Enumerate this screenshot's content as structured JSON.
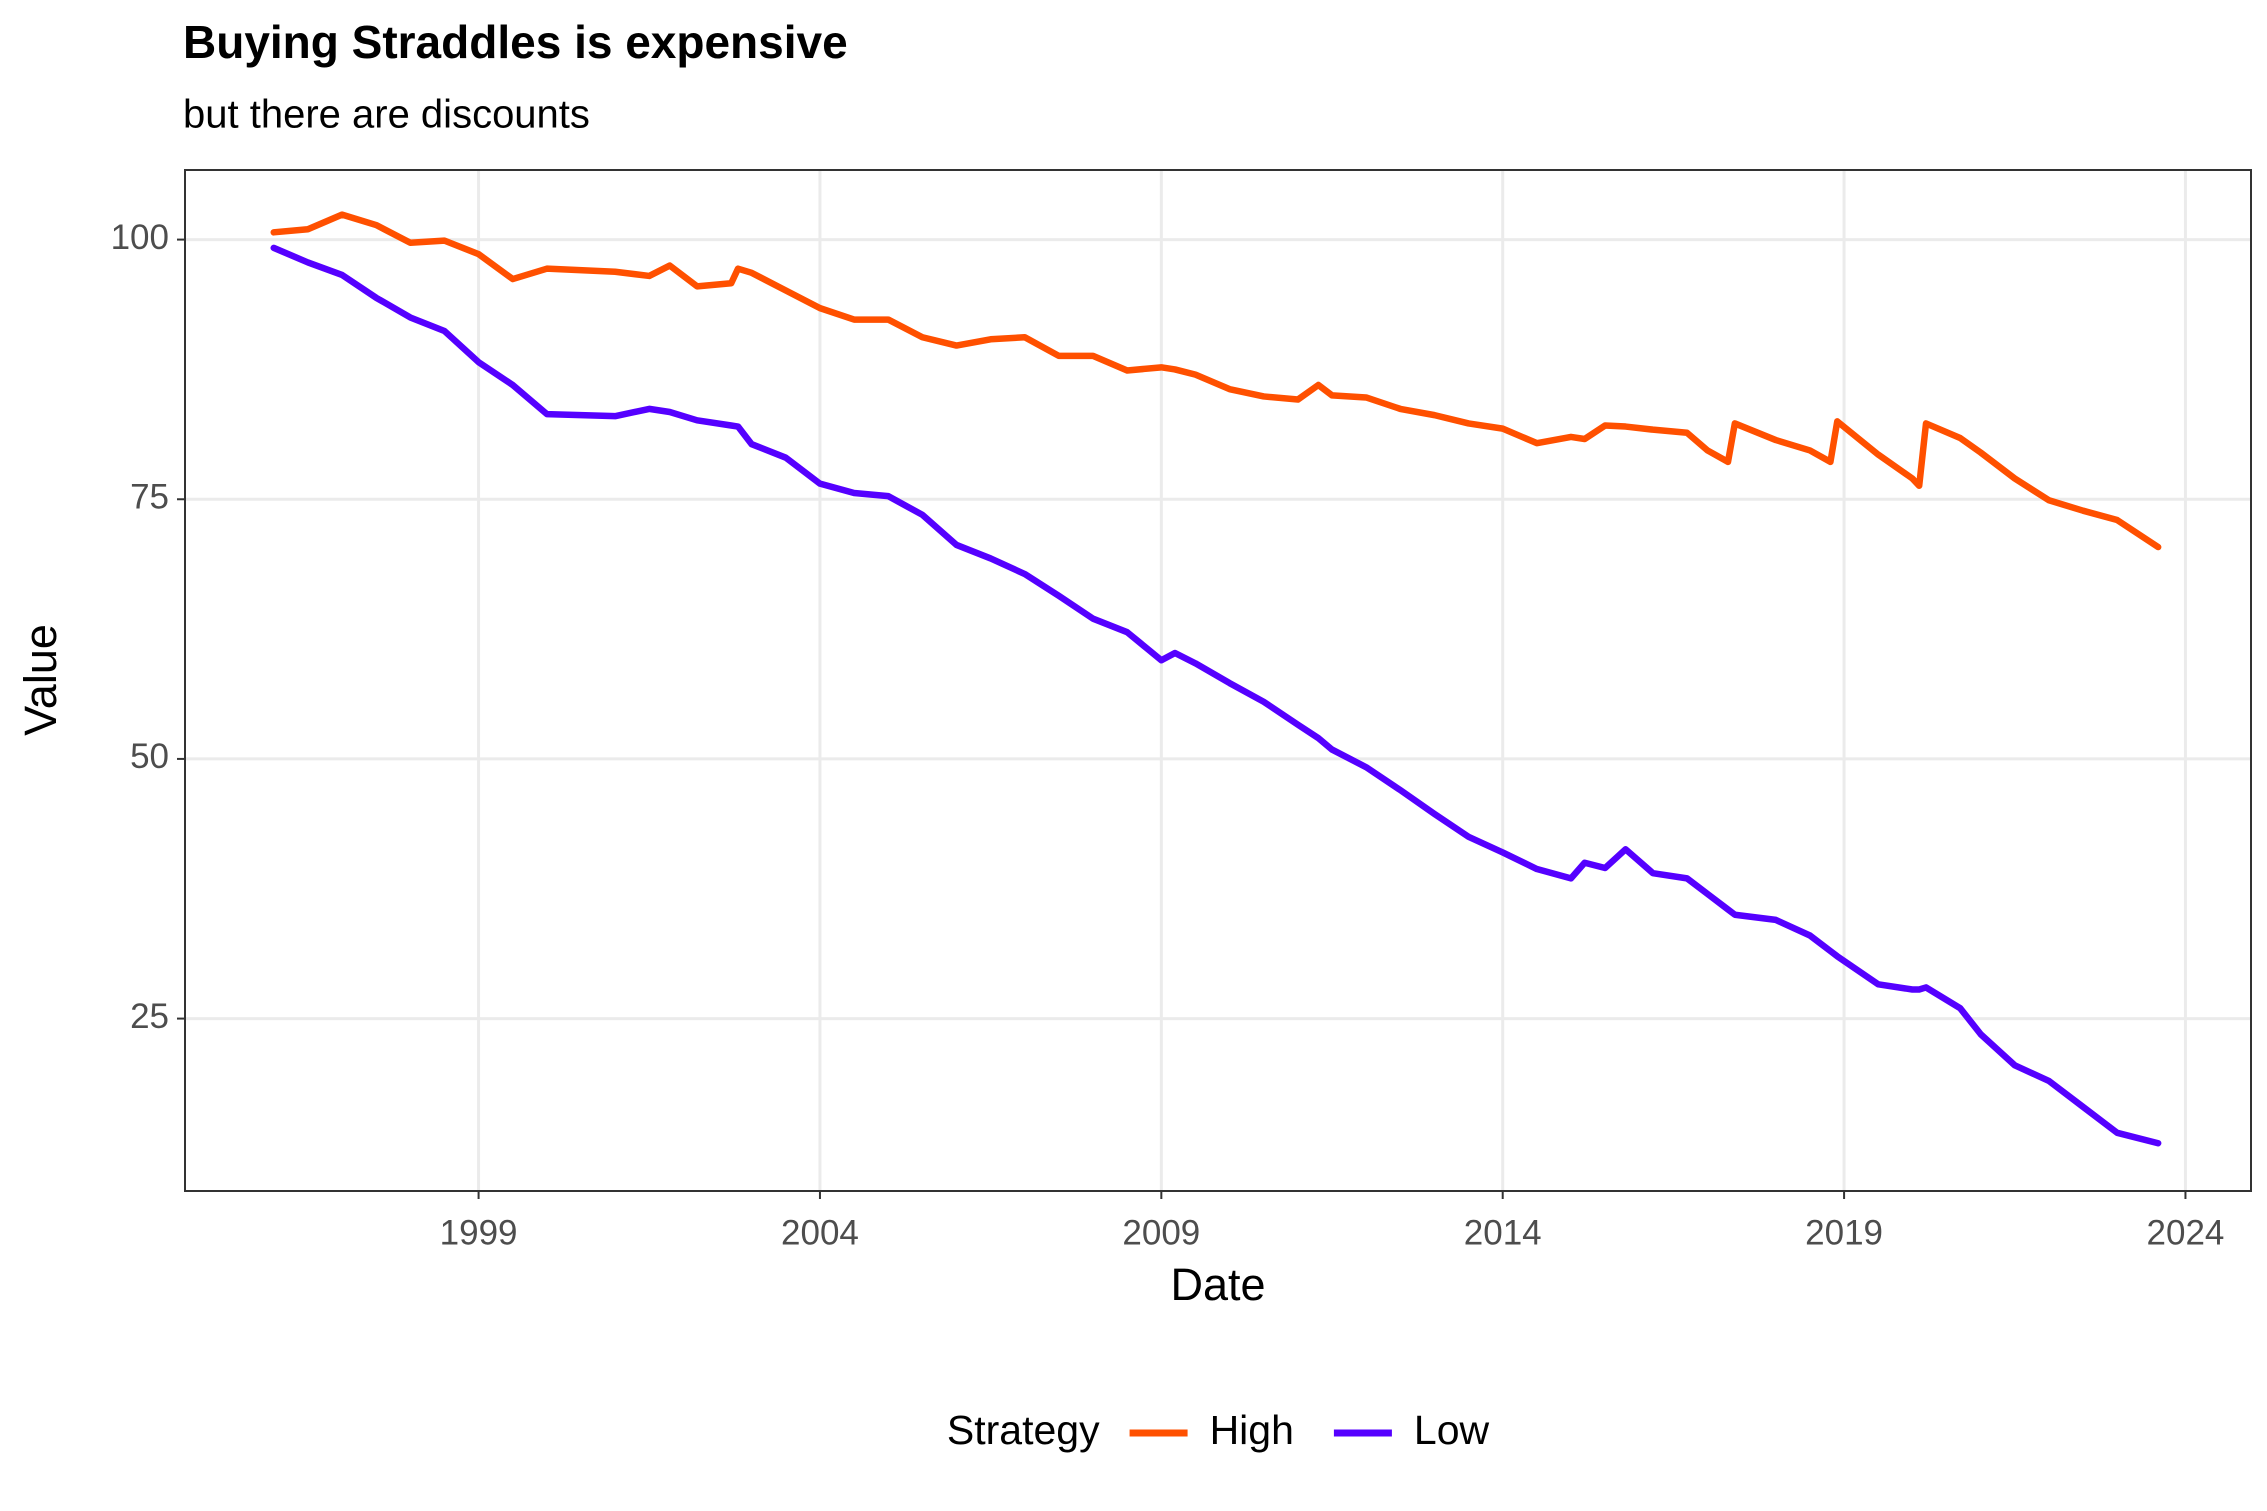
{
  "chart_data": {
    "type": "line",
    "title": "Buying Straddles is expensive",
    "subtitle": "but there are discounts",
    "x_label": "Date",
    "y_label": "Value",
    "legend_title": "Strategy",
    "legend_position": "bottom",
    "grid": true,
    "xlim": [
      1994.7,
      2024.96
    ],
    "ylim": [
      8.4,
      106.7
    ],
    "xticks": [
      1999,
      2004,
      2009,
      2014,
      2019,
      2024
    ],
    "yticks": [
      25,
      50,
      75,
      100
    ],
    "x": [
      1996.0,
      1996.5,
      1997.0,
      1997.5,
      1998.0,
      1998.5,
      1999.0,
      1999.5,
      2000.0,
      2001.0,
      2001.5,
      2001.8,
      2002.2,
      2002.7,
      2002.8,
      2003.0,
      2003.5,
      2004.0,
      2004.5,
      2005.0,
      2005.5,
      2006.0,
      2006.5,
      2007.0,
      2007.5,
      2008.0,
      2008.5,
      2009.0,
      2009.2,
      2009.5,
      2010.0,
      2010.5,
      2011.0,
      2011.3,
      2011.5,
      2012.0,
      2012.5,
      2013.0,
      2013.5,
      2014.0,
      2014.5,
      2015.0,
      2015.2,
      2015.5,
      2015.8,
      2016.2,
      2016.7,
      2017.0,
      2017.3,
      2017.4,
      2018.0,
      2018.5,
      2018.8,
      2018.9,
      2019.5,
      2020.0,
      2020.1,
      2020.2,
      2020.7,
      2021.0,
      2021.5,
      2022.0,
      2022.5,
      2023.0,
      2023.6
    ],
    "series": [
      {
        "name": "High",
        "color": "#ff5000",
        "values": [
          100.7,
          101,
          102.4,
          101.4,
          99.7,
          99.9,
          98.6,
          96.2,
          97.2,
          96.9,
          96.5,
          97.5,
          95.5,
          95.8,
          97.2,
          96.8,
          95.1,
          93.4,
          92.3,
          92.3,
          90.6,
          89.8,
          90.4,
          90.6,
          88.8,
          88.8,
          87.4,
          87.7,
          87.5,
          87,
          85.6,
          84.9,
          84.6,
          86,
          85,
          84.8,
          83.7,
          83.1,
          82.3,
          81.8,
          80.4,
          81,
          80.8,
          82.1,
          82,
          81.7,
          81.4,
          79.7,
          78.6,
          82.3,
          80.7,
          79.7,
          78.6,
          82.5,
          79.3,
          77,
          76.3,
          82.3,
          80.9,
          79.5,
          77,
          74.9,
          73.9,
          73,
          70.4
        ]
      },
      {
        "name": "Low",
        "color": "#5500ff",
        "values": [
          99.2,
          97.8,
          96.6,
          94.4,
          92.5,
          91.2,
          88.2,
          86,
          83.2,
          83,
          83.7,
          83.4,
          82.6,
          82.1,
          82,
          80.3,
          79,
          76.5,
          75.6,
          75.3,
          73.5,
          70.6,
          69.3,
          67.8,
          65.7,
          63.5,
          62.2,
          59.5,
          60.2,
          59.2,
          57.3,
          55.5,
          53.3,
          52,
          50.9,
          49.2,
          47,
          44.7,
          42.5,
          41,
          39.4,
          38.5,
          40,
          39.5,
          41.3,
          39,
          38.5,
          37,
          35.5,
          35,
          34.5,
          33,
          31.5,
          31,
          28.3,
          27.8,
          27.8,
          28,
          26,
          23.5,
          20.5,
          19,
          16.5,
          14,
          13
        ]
      }
    ]
  }
}
